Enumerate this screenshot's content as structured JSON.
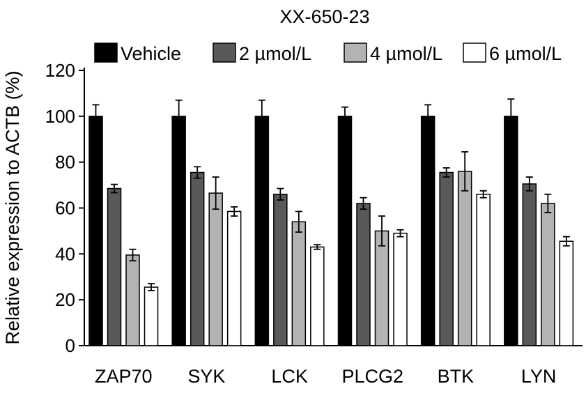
{
  "chart_data": {
    "type": "bar",
    "title": "XX-650-23",
    "xlabel": "",
    "ylabel": "Relative expression to ACTB (%)",
    "ylim": [
      0,
      120
    ],
    "yticks": [
      0,
      20,
      40,
      60,
      80,
      100,
      120
    ],
    "grid": false,
    "legend_position": "top",
    "categories": [
      "ZAP70",
      "SYK",
      "LCK",
      "PLCG2",
      "BTK",
      "LYN"
    ],
    "series": [
      {
        "name": "Vehicle",
        "color": "#000000",
        "values": [
          100,
          100,
          100,
          100,
          100,
          100
        ],
        "errors": [
          5,
          7,
          7,
          4,
          5,
          7.5
        ]
      },
      {
        "name": "2 µmol/L",
        "color": "#595959",
        "values": [
          68.5,
          75.5,
          66,
          62,
          75.5,
          70.5
        ],
        "errors": [
          1.8,
          2.5,
          2.5,
          2.5,
          2,
          3
        ]
      },
      {
        "name": "4 µmol/L",
        "color": "#b3b3b3",
        "values": [
          39.5,
          66.5,
          54,
          50,
          76,
          62
        ],
        "errors": [
          2.5,
          7,
          4.5,
          6.5,
          8.5,
          4
        ]
      },
      {
        "name": "6 µmol/L",
        "color": "#ffffff",
        "values": [
          25.5,
          58.5,
          43,
          49,
          66,
          45.5
        ],
        "errors": [
          1.5,
          2,
          1,
          1.5,
          1.5,
          2
        ]
      }
    ]
  }
}
